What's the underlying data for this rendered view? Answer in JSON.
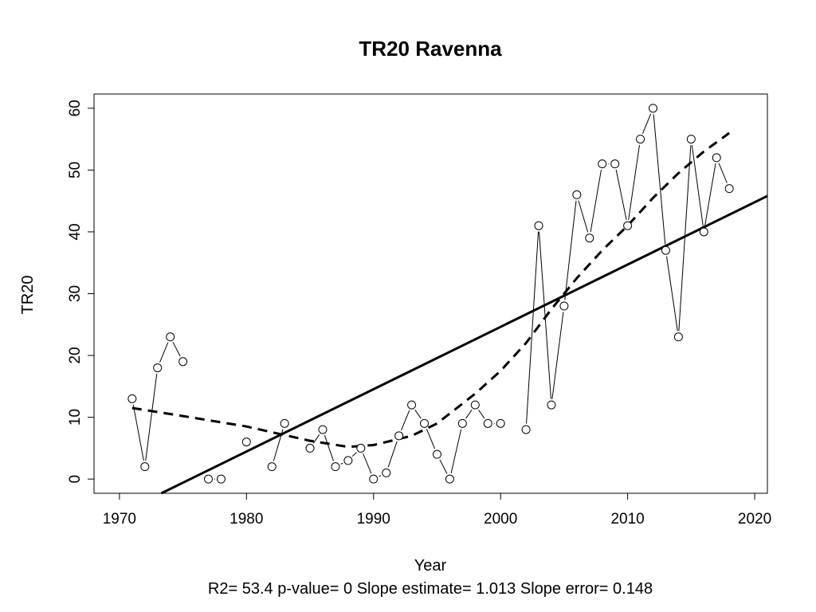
{
  "chart_data": {
    "type": "line",
    "title": "TR20   Ravenna",
    "xlabel": "Year",
    "ylabel": "TR20",
    "stats_line": "R2= 53.4  p-value= 0  Slope estimate= 1.013  Slope error= 0.148",
    "xlim": [
      1968,
      2021
    ],
    "ylim": [
      -2.3,
      62.3
    ],
    "x_ticks": [
      1970,
      1980,
      1990,
      2000,
      2010,
      2020
    ],
    "y_ticks": [
      0,
      10,
      20,
      30,
      40,
      50,
      60
    ],
    "grid": false,
    "legend": "none",
    "observed": {
      "segments": [
        [
          [
            1971,
            13
          ],
          [
            1972,
            2
          ],
          [
            1973,
            18
          ],
          [
            1974,
            23
          ],
          [
            1975,
            19
          ]
        ],
        [
          [
            1977,
            0
          ],
          [
            1978,
            0
          ]
        ],
        [
          [
            1980,
            6
          ]
        ],
        [
          [
            1982,
            2
          ],
          [
            1983,
            9
          ]
        ],
        [
          [
            1985,
            5
          ],
          [
            1986,
            8
          ],
          [
            1987,
            2
          ],
          [
            1988,
            3
          ],
          [
            1989,
            5
          ],
          [
            1990,
            0
          ],
          [
            1991,
            1
          ],
          [
            1992,
            7
          ],
          [
            1993,
            12
          ],
          [
            1994,
            9
          ],
          [
            1995,
            4
          ],
          [
            1996,
            0
          ],
          [
            1997,
            9
          ],
          [
            1998,
            12
          ],
          [
            1999,
            9
          ],
          [
            2000,
            9
          ]
        ],
        [
          [
            2002,
            8
          ],
          [
            2003,
            41
          ],
          [
            2004,
            12
          ],
          [
            2005,
            28
          ],
          [
            2006,
            46
          ],
          [
            2007,
            39
          ],
          [
            2008,
            51
          ],
          [
            2009,
            51
          ],
          [
            2010,
            41
          ],
          [
            2011,
            55
          ],
          [
            2012,
            60
          ],
          [
            2013,
            37
          ],
          [
            2014,
            23
          ],
          [
            2015,
            55
          ],
          [
            2016,
            40
          ],
          [
            2017,
            52
          ],
          [
            2018,
            47
          ]
        ]
      ]
    },
    "linear_trend": {
      "style": "solid",
      "points": [
        [
          1973.3,
          -2.3
        ],
        [
          2021,
          45.8
        ]
      ]
    },
    "smooth_trend": {
      "style": "dashed",
      "x": [
        1971,
        1975,
        1980,
        1985,
        1988,
        1990,
        1993,
        1995,
        1998,
        2000,
        2002,
        2004,
        2006,
        2008,
        2010,
        2012,
        2014,
        2016,
        2018
      ],
      "y": [
        11.5,
        10.2,
        8.5,
        6.2,
        5.2,
        5.5,
        7.0,
        9.0,
        13.8,
        17.5,
        22.0,
        27.5,
        32.5,
        37.0,
        41.0,
        45.5,
        49.5,
        53.0,
        56.0
      ]
    }
  }
}
